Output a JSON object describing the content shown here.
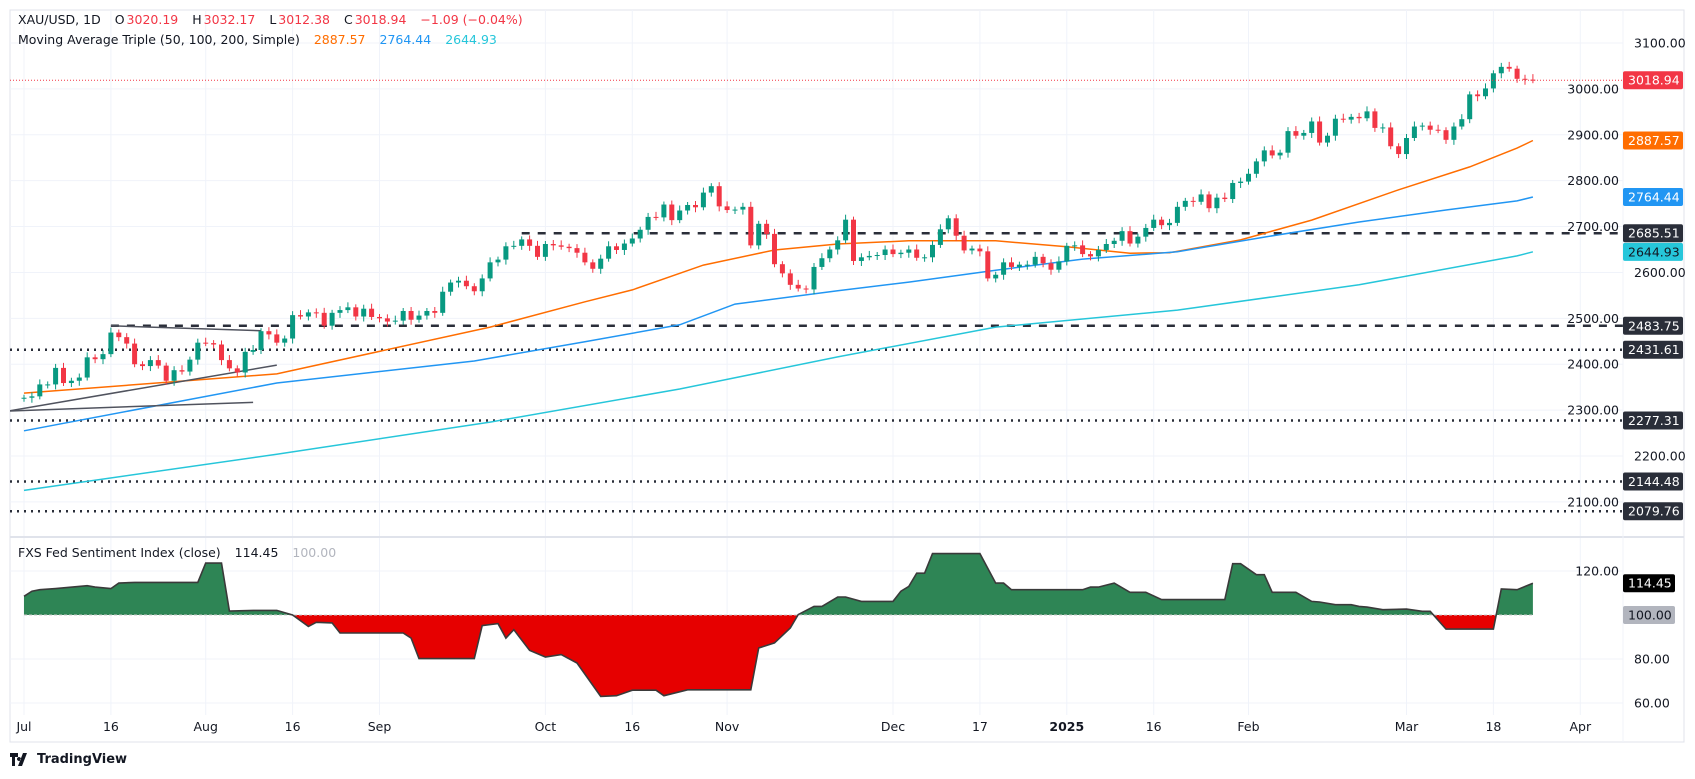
{
  "header": {
    "symbol": "XAU/USD, 1D",
    "open_label": "O",
    "open": "3020.19",
    "high_label": "H",
    "high": "3032.17",
    "low_label": "L",
    "low": "3012.38",
    "close_label": "C",
    "close": "3018.94",
    "change": "−1.09 (−0.04%)",
    "ma_title": "Moving Average Triple (50, 100, 200, Simple)",
    "ma50": "2887.57",
    "ma100": "2764.44",
    "ma200": "2644.93"
  },
  "indicator_header": {
    "title": "FXS Fed Sentiment Index (close)",
    "value": "114.45",
    "baseline": "100.00"
  },
  "logo": {
    "text": "TradingView"
  },
  "colors": {
    "up": "#089981",
    "down": "#f23645",
    "ma50": "#ff6d00",
    "ma100": "#2196f3",
    "ma200": "#26c6da",
    "level": "#2a2e39",
    "ind_up": "#2e8555",
    "ind_down": "#e60000"
  },
  "chart_data": [
    {
      "type": "candlestick",
      "title": "XAU/USD, 1D",
      "first_bar_date": "2024-07-01",
      "bar_frequency": "weekdays",
      "closes": [
        2327,
        2330,
        2356,
        2356,
        2392,
        2359,
        2364,
        2371,
        2415,
        2411,
        2422,
        2469,
        2459,
        2445,
        2400,
        2396,
        2409,
        2397,
        2364,
        2387,
        2384,
        2410,
        2447,
        2446,
        2443,
        2409,
        2391,
        2382,
        2427,
        2431,
        2472,
        2465,
        2447,
        2456,
        2507,
        2504,
        2513,
        2512,
        2484,
        2512,
        2518,
        2524,
        2504,
        2521,
        2503,
        2500,
        2493,
        2495,
        2516,
        2497,
        2506,
        2516,
        2512,
        2558,
        2578,
        2582,
        2570,
        2559,
        2587,
        2622,
        2628,
        2657,
        2658,
        2672,
        2658,
        2634,
        2662,
        2659,
        2656,
        2653,
        2643,
        2622,
        2608,
        2630,
        2657,
        2649,
        2663,
        2674,
        2693,
        2721,
        2720,
        2748,
        2714,
        2735,
        2747,
        2742,
        2774,
        2788,
        2744,
        2736,
        2737,
        2743,
        2659,
        2706,
        2684,
        2618,
        2598,
        2573,
        2565,
        2563,
        2612,
        2631,
        2650,
        2670,
        2715,
        2625,
        2633,
        2636,
        2638,
        2650,
        2640,
        2643,
        2650,
        2632,
        2633,
        2660,
        2694,
        2718,
        2680,
        2648,
        2652,
        2646,
        2587,
        2595,
        2622,
        2612,
        2617,
        2617,
        2634,
        2620,
        2606,
        2624,
        2658,
        2659,
        2640,
        2635,
        2649,
        2662,
        2669,
        2690,
        2663,
        2678,
        2697,
        2715,
        2703,
        2708,
        2743,
        2756,
        2754,
        2770,
        2740,
        2763,
        2760,
        2795,
        2798,
        2815,
        2842,
        2866,
        2855,
        2861,
        2908,
        2898,
        2904,
        2929,
        2883,
        2898,
        2935,
        2933,
        2939,
        2936,
        2951,
        2915,
        2916,
        2875,
        2858,
        2893,
        2918,
        2920,
        2911,
        2910,
        2889,
        2918,
        2934,
        2988,
        2984,
        3001,
        3034,
        3048,
        3044,
        3022,
        3020.03,
        3018.94
      ],
      "last_bar": {
        "open": 3020.19,
        "high": 3032.17,
        "low": 3012.38,
        "close": 3018.94
      },
      "moving_averages": [
        {
          "name": "MA 50",
          "color": "#ff6d00",
          "points": [
            [
              "2024-07-01",
              2337
            ],
            [
              "2024-08-14",
              2379
            ],
            [
              "2024-09-20",
              2481
            ],
            [
              "2024-10-08",
              2536
            ],
            [
              "2024-10-16",
              2562
            ],
            [
              "2024-10-29",
              2616
            ],
            [
              "2024-11-11",
              2649
            ],
            [
              "2024-11-21",
              2662
            ],
            [
              "2024-12-04",
              2669
            ],
            [
              "2024-12-19",
              2669
            ],
            [
              "2025-01-01",
              2656
            ],
            [
              "2025-01-13",
              2642
            ],
            [
              "2025-01-20",
              2643
            ],
            [
              "2025-01-31",
              2671
            ],
            [
              "2025-02-13",
              2714
            ],
            [
              "2025-02-28",
              2780
            ],
            [
              "2025-03-13",
              2830
            ],
            [
              "2025-03-21",
              2871
            ],
            [
              "2025-03-25",
              2887.57
            ]
          ]
        },
        {
          "name": "MA 100",
          "color": "#2196f3",
          "points": [
            [
              "2024-07-01",
              2255
            ],
            [
              "2024-08-14",
              2359
            ],
            [
              "2024-09-18",
              2407
            ],
            [
              "2024-10-08",
              2449
            ],
            [
              "2024-10-24",
              2486
            ],
            [
              "2024-11-04",
              2531
            ],
            [
              "2024-11-21",
              2560
            ],
            [
              "2024-12-04",
              2579
            ],
            [
              "2024-12-19",
              2605
            ],
            [
              "2025-01-03",
              2629
            ],
            [
              "2025-01-21",
              2645
            ],
            [
              "2025-02-05",
              2677
            ],
            [
              "2025-02-21",
              2710
            ],
            [
              "2025-03-10",
              2736
            ],
            [
              "2025-03-21",
              2756
            ],
            [
              "2025-03-25",
              2764.44
            ]
          ]
        },
        {
          "name": "MA 200",
          "color": "#26c6da",
          "points": [
            [
              "2024-07-01",
              2125
            ],
            [
              "2024-08-14",
              2204
            ],
            [
              "2024-09-20",
              2274
            ],
            [
              "2024-10-24",
              2346
            ],
            [
              "2024-11-21",
              2416
            ],
            [
              "2024-12-19",
              2481
            ],
            [
              "2025-01-21",
              2518
            ],
            [
              "2025-02-21",
              2573
            ],
            [
              "2025-03-21",
              2636
            ],
            [
              "2025-03-25",
              2644.93
            ]
          ]
        }
      ],
      "levels": [
        {
          "price": 2685.51,
          "label": "2685.51",
          "style": "dashed",
          "from": "2024-09-26"
        },
        {
          "price": 2483.75,
          "label": "2483.75",
          "style": "dashed",
          "from": "2024-07-16"
        },
        {
          "price": 2431.61,
          "label": "2431.61",
          "style": "dotted"
        },
        {
          "price": 2277.31,
          "label": "2277.31",
          "style": "dotted"
        },
        {
          "price": 2144.48,
          "label": "2144.48",
          "style": "dotted"
        },
        {
          "price": 2079.76,
          "label": "2079.76",
          "style": "dotted"
        }
      ],
      "trend_lines": [
        {
          "from": [
            "2024-07-16",
            2483.75
          ],
          "to": [
            "2024-08-12",
            2473
          ]
        },
        {
          "from": [
            "2024-06-27",
            2298
          ],
          "to": [
            "2024-08-14",
            2398
          ]
        },
        {
          "from": [
            "2024-06-27",
            2298
          ],
          "to": [
            "2024-08-09",
            2317
          ]
        }
      ],
      "price_badges": [
        {
          "label": "3018.94",
          "price": 3018.94,
          "color": "#f23645",
          "text_color": "#ffffff"
        },
        {
          "label": "2887.57",
          "price": 2887.57,
          "color": "#ff6d00",
          "text_color": "#ffffff"
        },
        {
          "label": "2764.44",
          "price": 2764.44,
          "color": "#2196f3",
          "text_color": "#ffffff"
        },
        {
          "label": "2644.93",
          "price": 2644.93,
          "color": "#26c6da",
          "text_color": "#131722"
        }
      ],
      "y_ticks": [
        "3100.00",
        "3000.00",
        "2900.00",
        "2800.00",
        "2700.00",
        "2600.00",
        "2500.00",
        "2400.00",
        "2300.00",
        "2200.00",
        "2100.00"
      ],
      "ylim": [
        2060,
        3120
      ],
      "grid": true
    },
    {
      "type": "area",
      "title": "FXS Fed Sentiment Index (close)",
      "baseline": 100,
      "points": [
        [
          "2024-07-01",
          108.5
        ],
        [
          "2024-07-02",
          110.8
        ],
        [
          "2024-07-03",
          111.5
        ],
        [
          "2024-07-05",
          112
        ],
        [
          "2024-07-11",
          113.3
        ],
        [
          "2024-07-12",
          112.7
        ],
        [
          "2024-07-16",
          112
        ],
        [
          "2024-07-17",
          114.5
        ],
        [
          "2024-07-19",
          114.8
        ],
        [
          "2024-07-31",
          114.8
        ],
        [
          "2024-08-01",
          123.6
        ],
        [
          "2024-08-05",
          123.6
        ],
        [
          "2024-08-06",
          101.8
        ],
        [
          "2024-08-09",
          102.1
        ],
        [
          "2024-08-14",
          102.1
        ],
        [
          "2024-08-16",
          100
        ],
        [
          "2024-08-20",
          94.8
        ],
        [
          "2024-08-21",
          96.7
        ],
        [
          "2024-08-23",
          96.4
        ],
        [
          "2024-08-26",
          91.8
        ],
        [
          "2024-09-05",
          91.8
        ],
        [
          "2024-09-06",
          89.5
        ],
        [
          "2024-09-09",
          80.2
        ],
        [
          "2024-09-18",
          80.2
        ],
        [
          "2024-09-19",
          95.2
        ],
        [
          "2024-09-23",
          96.1
        ],
        [
          "2024-09-24",
          89.5
        ],
        [
          "2024-09-25",
          93.3
        ],
        [
          "2024-09-27",
          83.9
        ],
        [
          "2024-10-01",
          80.9
        ],
        [
          "2024-10-03",
          82
        ],
        [
          "2024-10-07",
          78.2
        ],
        [
          "2024-10-10",
          63
        ],
        [
          "2024-10-14",
          63.3
        ],
        [
          "2024-10-16",
          65.8
        ],
        [
          "2024-10-21",
          65.8
        ],
        [
          "2024-10-22",
          63.3
        ],
        [
          "2024-10-25",
          66
        ],
        [
          "2024-11-06",
          66
        ],
        [
          "2024-11-07",
          85
        ],
        [
          "2024-11-11",
          87.3
        ],
        [
          "2024-11-13",
          94.1
        ],
        [
          "2024-11-14",
          100.2
        ],
        [
          "2024-11-18",
          103.9
        ],
        [
          "2024-11-19",
          103.9
        ],
        [
          "2024-11-21",
          108.2
        ],
        [
          "2024-11-22",
          108.2
        ],
        [
          "2024-11-26",
          106.2
        ],
        [
          "2024-12-02",
          106.2
        ],
        [
          "2024-12-03",
          110.8
        ],
        [
          "2024-12-04",
          113
        ],
        [
          "2024-12-05",
          119
        ],
        [
          "2024-12-06",
          119
        ],
        [
          "2024-12-09",
          127.9
        ],
        [
          "2024-12-17",
          127.9
        ],
        [
          "2024-12-19",
          114.5
        ],
        [
          "2024-12-20",
          114.5
        ],
        [
          "2024-12-23",
          111.5
        ],
        [
          "2025-01-03",
          111.5
        ],
        [
          "2025-01-06",
          112.7
        ],
        [
          "2025-01-07",
          112.7
        ],
        [
          "2025-01-09",
          114.5
        ],
        [
          "2025-01-13",
          110.3
        ],
        [
          "2025-01-15",
          110.3
        ],
        [
          "2025-01-17",
          107
        ],
        [
          "2025-01-29",
          107
        ],
        [
          "2025-01-30",
          123.3
        ],
        [
          "2025-01-31",
          123.3
        ],
        [
          "2025-02-04",
          118.3
        ],
        [
          "2025-02-05",
          118.3
        ],
        [
          "2025-02-06",
          110.3
        ],
        [
          "2025-02-11",
          110.3
        ],
        [
          "2025-02-13",
          106.2
        ],
        [
          "2025-02-14",
          105.9
        ],
        [
          "2025-02-18",
          104.7
        ],
        [
          "2025-02-20",
          104.7
        ],
        [
          "2025-02-21",
          103.9
        ],
        [
          "2025-02-24",
          103.6
        ],
        [
          "2025-02-26",
          102.4
        ],
        [
          "2025-03-03",
          102.7
        ],
        [
          "2025-03-05",
          101.7
        ],
        [
          "2025-03-06",
          101.7
        ],
        [
          "2025-03-10",
          93.6
        ],
        [
          "2025-03-18",
          93.6
        ],
        [
          "2025-03-19",
          111.8
        ],
        [
          "2025-03-21",
          111.5
        ],
        [
          "2025-03-25",
          114.45
        ]
      ],
      "badges": [
        {
          "label": "114.45",
          "value": 114.45,
          "color": "#000000",
          "text_color": "#ffffff"
        },
        {
          "label": "100.00",
          "value": 100,
          "color": "#b2b5be",
          "text_color": "#131722"
        }
      ],
      "y_ticks": [
        "120.00",
        "80.00",
        "60.00"
      ],
      "ylim": [
        55,
        135
      ]
    }
  ],
  "x_ticks": [
    {
      "label": "Jul",
      "date": "2024-07-01"
    },
    {
      "label": "16",
      "date": "2024-07-16"
    },
    {
      "label": "Aug",
      "date": "2024-08-01"
    },
    {
      "label": "16",
      "date": "2024-08-16"
    },
    {
      "label": "Sep",
      "date": "2024-09-02"
    },
    {
      "label": "Oct",
      "date": "2024-10-01"
    },
    {
      "label": "16",
      "date": "2024-10-16"
    },
    {
      "label": "Nov",
      "date": "2024-11-01"
    },
    {
      "label": "Dec",
      "date": "2024-12-02"
    },
    {
      "label": "17",
      "date": "2024-12-17"
    },
    {
      "label": "2025",
      "date": "2025-01-01",
      "bold": true
    },
    {
      "label": "16",
      "date": "2025-01-16"
    },
    {
      "label": "Feb",
      "date": "2025-02-03"
    },
    {
      "label": "Mar",
      "date": "2025-03-03"
    },
    {
      "label": "18",
      "date": "2025-03-18"
    },
    {
      "label": "Apr",
      "date": "2025-04-02"
    }
  ]
}
